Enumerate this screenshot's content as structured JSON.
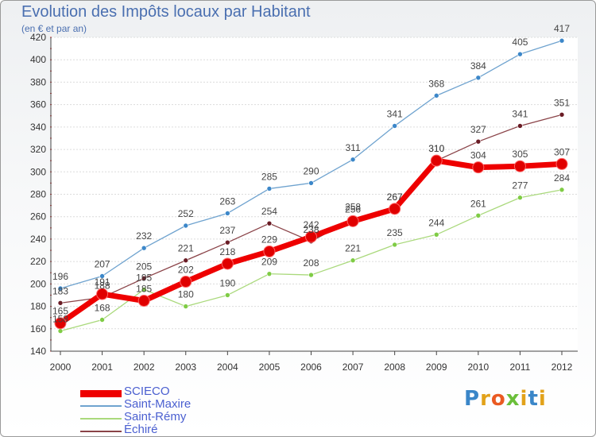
{
  "title": "Evolution des Impôts locaux par Habitant",
  "subtitle": "(en € et par an)",
  "logo": {
    "text": "Proxiti",
    "colors": [
      "#3a86c8",
      "#e2a21a",
      "#ea5a22",
      "#6bbf3a",
      "#e2a21a",
      "#3a86c8",
      "#e2a21a"
    ]
  },
  "chart_data": {
    "type": "line",
    "title": "Evolution des Impôts locaux par Habitant",
    "subtitle": "(en € et par an)",
    "xlabel": "",
    "ylabel": "",
    "x": [
      "2000",
      "2001",
      "2002",
      "2003",
      "2004",
      "2005",
      "2006",
      "2007",
      "2008",
      "2009",
      "2010",
      "2011",
      "2012"
    ],
    "ylim": [
      140,
      420
    ],
    "yticks": [
      140,
      160,
      180,
      200,
      220,
      240,
      260,
      280,
      300,
      320,
      340,
      360,
      380,
      400,
      420
    ],
    "grid": "horizontal",
    "legend_position": "bottom-left",
    "series": [
      {
        "name": "Saint-Maxire",
        "color": "#6fa3cf",
        "marker": "#3c87c9",
        "values": [
          196,
          207,
          232,
          252,
          263,
          285,
          290,
          311,
          341,
          368,
          384,
          405,
          417
        ]
      },
      {
        "name": "Saint-Rémy",
        "color": "#aad97c",
        "marker": "#7fcc45",
        "values": [
          158,
          168,
          195,
          180,
          190,
          209,
          208,
          221,
          235,
          244,
          261,
          277,
          284
        ]
      },
      {
        "name": "Échiré",
        "color": "#8a4348",
        "marker": "#6a1c25",
        "values": [
          183,
          188,
          205,
          221,
          237,
          254,
          238,
          258,
          267,
          310,
          327,
          341,
          351
        ]
      },
      {
        "name": "SCIECO",
        "color": "#ee0000",
        "marker": "#e00000",
        "values": [
          165,
          191,
          185,
          202,
          218,
          229,
          242,
          256,
          267,
          310,
          304,
          305,
          307
        ]
      }
    ]
  }
}
